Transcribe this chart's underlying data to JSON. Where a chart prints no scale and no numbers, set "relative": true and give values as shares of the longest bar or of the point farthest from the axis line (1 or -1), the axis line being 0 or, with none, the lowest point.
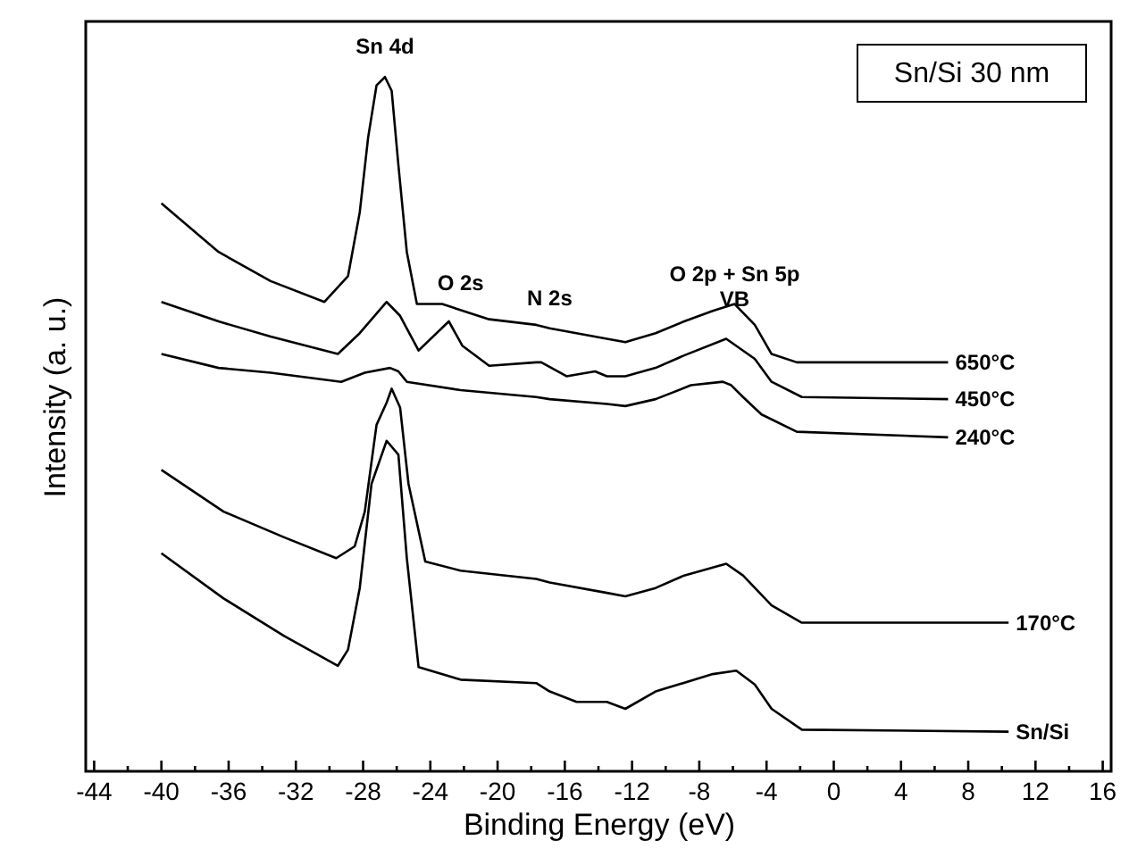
{
  "chart_data": {
    "type": "line",
    "title": "Sn/Si 30 nm",
    "xlabel": "Binding Energy (eV)",
    "ylabel": "Intensity (a. u.)",
    "relative": true,
    "grid": false,
    "marker": "none",
    "line_style": "solid",
    "xlim": [
      -44.5,
      16.5
    ],
    "xticks": [
      -44,
      {
        "value": -42,
        "label": null
      },
      -40,
      {
        "value": -38,
        "label": null
      },
      -36,
      {
        "value": -34,
        "label": null
      },
      -32,
      {
        "value": -30,
        "label": null
      },
      -28,
      {
        "value": -26,
        "label": null
      },
      -24,
      {
        "value": -22,
        "label": null
      },
      -20,
      {
        "value": -18,
        "label": null
      },
      -16,
      {
        "value": -14,
        "label": null
      },
      -12,
      {
        "value": -10,
        "label": null
      },
      -8,
      {
        "value": -6,
        "label": null
      },
      -4,
      {
        "value": -2,
        "label": null
      },
      0,
      {
        "value": 2,
        "label": null
      },
      4,
      {
        "value": 6,
        "label": null
      },
      8,
      {
        "value": 10,
        "label": null
      },
      12,
      {
        "value": 14,
        "label": null
      },
      16
    ],
    "annotations": [
      {
        "text": "Sn 4d",
        "x": -26.7,
        "y": 1.0
      },
      {
        "text": "O 2s",
        "x": -22.2,
        "y": 0.66
      },
      {
        "text": "N 2s",
        "x": -16.9,
        "y": 0.638
      },
      {
        "text": "O 2p + Sn 5p\nVB",
        "x": -5.9,
        "y": 0.673
      }
    ],
    "series": [
      {
        "name": "650°C",
        "color": "#000000",
        "x": [
          -40.0,
          -36.6,
          -33.5,
          -30.3,
          -28.9,
          -28.2,
          -27.7,
          -27.2,
          -26.7,
          -26.3,
          -25.9,
          -25.4,
          -24.8,
          -23.3,
          -20.5,
          -17.7,
          -16.9,
          -13.5,
          -12.4,
          -10.6,
          -8.9,
          -7.2,
          -5.9,
          -4.7,
          -3.7,
          -2.2,
          6.8
        ],
        "values": [
          0.818,
          0.748,
          0.706,
          0.676,
          0.713,
          0.805,
          0.913,
          0.988,
          1.0,
          0.98,
          0.873,
          0.748,
          0.673,
          0.673,
          0.651,
          0.643,
          0.638,
          0.623,
          0.618,
          0.631,
          0.648,
          0.663,
          0.673,
          0.643,
          0.601,
          0.589,
          0.589
        ]
      },
      {
        "name": "450°C",
        "color": "#000000",
        "x": [
          -40.0,
          -36.6,
          -33.5,
          -29.5,
          -28.2,
          -26.6,
          -25.8,
          -24.7,
          -22.9,
          -22.1,
          -20.5,
          -17.7,
          -17.4,
          -15.9,
          -14.2,
          -13.5,
          -12.4,
          -10.6,
          -8.9,
          -6.4,
          -4.7,
          -3.7,
          -1.9,
          6.8
        ],
        "values": [
          0.676,
          0.648,
          0.626,
          0.601,
          0.631,
          0.676,
          0.656,
          0.606,
          0.648,
          0.613,
          0.584,
          0.589,
          0.589,
          0.569,
          0.576,
          0.569,
          0.569,
          0.581,
          0.599,
          0.623,
          0.594,
          0.561,
          0.539,
          0.536
        ]
      },
      {
        "name": "240°C",
        "color": "#000000",
        "x": [
          -40.0,
          -36.6,
          -33.5,
          -29.3,
          -27.9,
          -26.4,
          -25.9,
          -25.4,
          -22.2,
          -17.7,
          -16.9,
          -13.5,
          -12.4,
          -10.6,
          -8.5,
          -6.6,
          -6.1,
          -5.4,
          -4.3,
          -2.2,
          6.8
        ],
        "values": [
          0.601,
          0.581,
          0.574,
          0.561,
          0.574,
          0.581,
          0.576,
          0.561,
          0.549,
          0.539,
          0.536,
          0.529,
          0.526,
          0.536,
          0.556,
          0.561,
          0.556,
          0.539,
          0.514,
          0.489,
          0.481
        ]
      },
      {
        "name": "170°C",
        "color": "#000000",
        "x": [
          -40.0,
          -36.3,
          -32.7,
          -29.6,
          -28.5,
          -27.9,
          -27.2,
          -26.6,
          -26.3,
          -25.8,
          -25.3,
          -24.3,
          -22.2,
          -17.7,
          -16.9,
          -13.5,
          -12.4,
          -10.6,
          -8.9,
          -6.4,
          -5.4,
          -3.7,
          -1.9,
          10.4
        ],
        "values": [
          0.434,
          0.374,
          0.337,
          0.307,
          0.324,
          0.374,
          0.499,
          0.531,
          0.551,
          0.524,
          0.414,
          0.302,
          0.289,
          0.277,
          0.272,
          0.257,
          0.252,
          0.264,
          0.282,
          0.299,
          0.282,
          0.239,
          0.214,
          0.214
        ]
      },
      {
        "name": "Sn/Si",
        "color": "#000000",
        "x": [
          -40.0,
          -36.3,
          -32.7,
          -29.5,
          -28.9,
          -28.2,
          -27.5,
          -26.6,
          -25.9,
          -25.4,
          -24.7,
          -22.2,
          -17.7,
          -16.9,
          -15.3,
          -13.5,
          -12.4,
          -10.6,
          -7.2,
          -5.8,
          -4.7,
          -3.7,
          -1.9,
          10.4
        ],
        "values": [
          0.314,
          0.249,
          0.195,
          0.152,
          0.175,
          0.264,
          0.414,
          0.476,
          0.456,
          0.307,
          0.15,
          0.132,
          0.127,
          0.115,
          0.1,
          0.1,
          0.09,
          0.115,
          0.14,
          0.145,
          0.125,
          0.09,
          0.06,
          0.057
        ]
      }
    ]
  }
}
